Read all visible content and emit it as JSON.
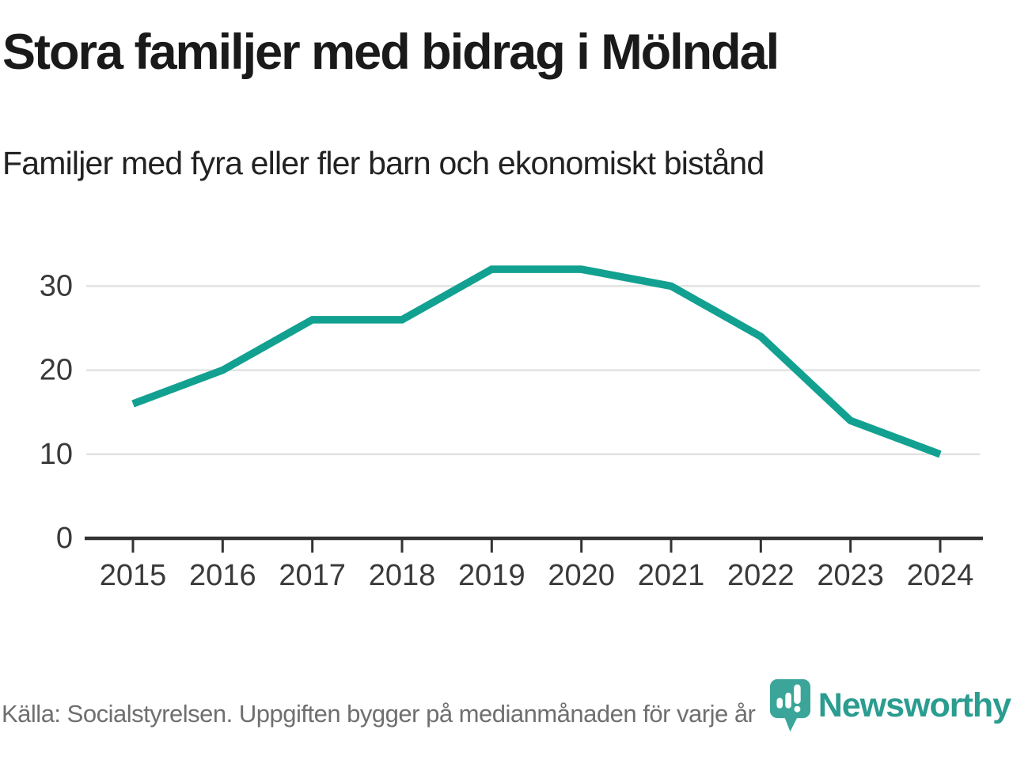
{
  "header": {
    "title": "Stora familjer med bidrag i Mölndal",
    "subtitle": "Familjer med fyra eller fler barn och ekonomiskt bistånd"
  },
  "chart_data": {
    "type": "line",
    "title": "Stora familjer med bidrag i Mölndal",
    "subtitle": "Familjer med fyra eller fler barn och ekonomiskt bistånd",
    "categories": [
      "2015",
      "2016",
      "2017",
      "2018",
      "2019",
      "2020",
      "2021",
      "2022",
      "2023",
      "2024"
    ],
    "values": [
      16,
      20,
      26,
      26,
      32,
      32,
      30,
      24,
      14,
      10
    ],
    "xlabel": "",
    "ylabel": "",
    "ylim": [
      0,
      34
    ],
    "yticks": [
      0,
      10,
      20,
      30
    ],
    "grid": true,
    "legend_position": "none",
    "line_color": "#12A191"
  },
  "footer": {
    "source": "Källa: Socialstyrelsen. Uppgiften bygger på medianmånaden för varje år",
    "brand": "Newsworthy"
  },
  "colors": {
    "line": "#12A191",
    "grid": "#e2e2e2",
    "axis": "#333333",
    "tick_label": "#3a3a3a",
    "brand_teal": "#3aa598"
  }
}
